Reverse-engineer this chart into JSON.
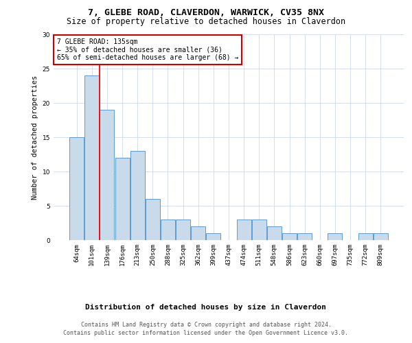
{
  "title": "7, GLEBE ROAD, CLAVERDON, WARWICK, CV35 8NX",
  "subtitle": "Size of property relative to detached houses in Claverdon",
  "xlabel": "Distribution of detached houses by size in Claverdon",
  "ylabel": "Number of detached properties",
  "categories": [
    "64sqm",
    "101sqm",
    "139sqm",
    "176sqm",
    "213sqm",
    "250sqm",
    "288sqm",
    "325sqm",
    "362sqm",
    "399sqm",
    "437sqm",
    "474sqm",
    "511sqm",
    "548sqm",
    "586sqm",
    "623sqm",
    "660sqm",
    "697sqm",
    "735sqm",
    "772sqm",
    "809sqm"
  ],
  "values": [
    15,
    24,
    19,
    12,
    13,
    6,
    3,
    3,
    2,
    1,
    0,
    3,
    3,
    2,
    1,
    1,
    0,
    1,
    0,
    1,
    1
  ],
  "bar_color": "#c9daea",
  "bar_edgecolor": "#5b9bd5",
  "ylim": [
    0,
    30
  ],
  "yticks": [
    0,
    5,
    10,
    15,
    20,
    25,
    30
  ],
  "property_label": "7 GLEBE ROAD: 135sqm",
  "annotation_line1": "← 35% of detached houses are smaller (36)",
  "annotation_line2": "65% of semi-detached houses are larger (68) →",
  "vline_x_index": 1.5,
  "annotation_box_color": "#ffffff",
  "annotation_box_edgecolor": "#cc0000",
  "footer_line1": "Contains HM Land Registry data © Crown copyright and database right 2024.",
  "footer_line2": "Contains public sector information licensed under the Open Government Licence v3.0.",
  "title_fontsize": 9.5,
  "subtitle_fontsize": 8.5,
  "ylabel_fontsize": 7.5,
  "tick_fontsize": 6.5,
  "annotation_fontsize": 7,
  "xlabel_fontsize": 8,
  "footer_fontsize": 6,
  "background_color": "#ffffff",
  "grid_color": "#d0d8e8"
}
